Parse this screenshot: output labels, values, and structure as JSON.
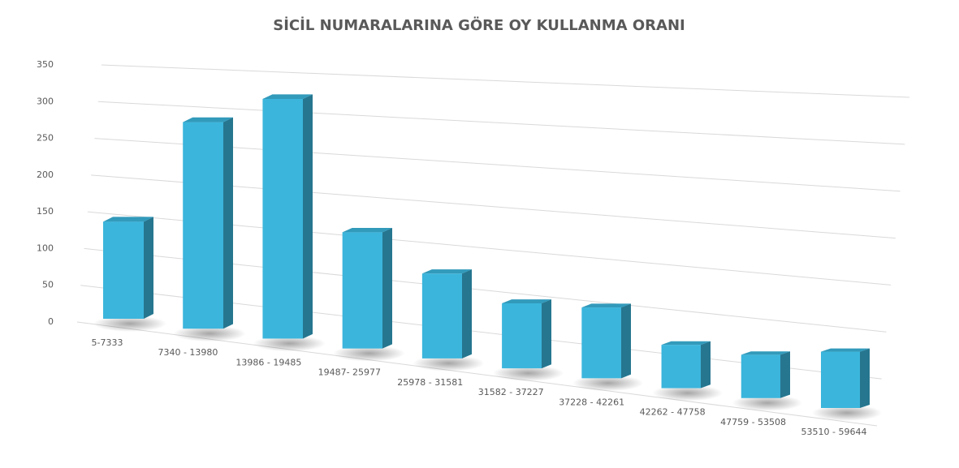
{
  "chart_data": {
    "type": "bar3d",
    "title": "SİCİL NUMARALARINA GÖRE OY KULLANMA ORANI",
    "categories": [
      "5-7333",
      "7340 - 13980",
      "13986 - 19485",
      "19487- 25977",
      "25978 - 31581",
      "31582 - 37227",
      "37228 - 42261",
      "42262 - 47758",
      "47759 - 53508",
      "53510 - 59644"
    ],
    "values": [
      125,
      260,
      295,
      140,
      100,
      75,
      80,
      48,
      47,
      60
    ],
    "color": "#3bb5dc",
    "ylim": [
      0,
      350
    ],
    "yticks": [
      0,
      50,
      100,
      150,
      200,
      250,
      300,
      350
    ],
    "grid": true
  }
}
